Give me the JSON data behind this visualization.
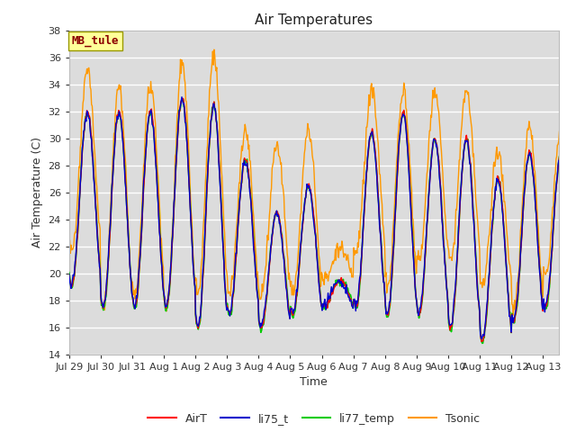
{
  "title": "Air Temperatures",
  "ylabel": "Air Temperature (C)",
  "xlabel": "Time",
  "ylim": [
    14,
    38
  ],
  "yticks": [
    14,
    16,
    18,
    20,
    22,
    24,
    26,
    28,
    30,
    32,
    34,
    36,
    38
  ],
  "site_label": "MB_tule",
  "line_colors": {
    "AirT": "#ff0000",
    "li75_t": "#0000cc",
    "li77_temp": "#00cc00",
    "Tsonic": "#ff9900"
  },
  "bg_color": "#dcdcdc",
  "fig_bg": "#ffffff",
  "tick_labels": [
    "Jul 29",
    "Jul 30",
    "Jul 31",
    "Aug 1",
    "Aug 2",
    "Aug 3",
    "Aug 4",
    "Aug 5",
    "Aug 6",
    "Aug 7",
    "Aug 8",
    "Aug 9",
    "Aug 10",
    "Aug 11",
    "Aug 12",
    "Aug 13"
  ]
}
